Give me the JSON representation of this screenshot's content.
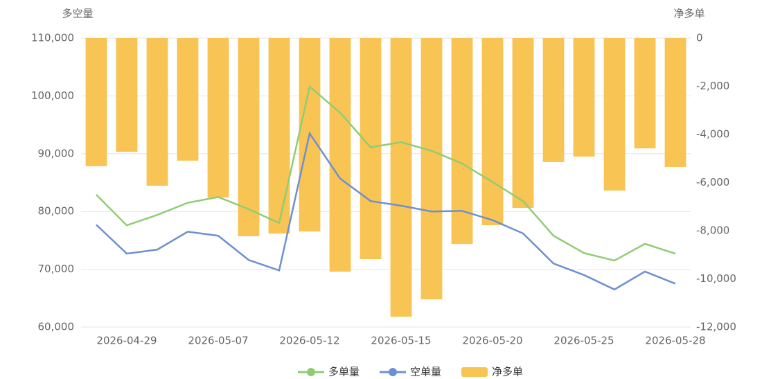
{
  "chart_data": {
    "type": "bar_line",
    "y_label": "多空量",
    "y2_label": "净多单",
    "categories": [
      null,
      "2026-04-29",
      null,
      null,
      "2026-05-07",
      null,
      null,
      "2026-05-12",
      null,
      null,
      "2026-05-15",
      null,
      null,
      "2026-05-20",
      null,
      null,
      "2026-05-25",
      null,
      null,
      "2026-05-28"
    ],
    "series": [
      {
        "name": "多单量",
        "color": "#91cc75",
        "kind": "line",
        "axis": "y",
        "values": [
          82900,
          77600,
          79400,
          81500,
          82500,
          80400,
          78000,
          101600,
          97100,
          91100,
          92000,
          90500,
          88300,
          85100,
          81800,
          75800,
          72800,
          71500,
          74400,
          72700
        ]
      },
      {
        "name": "空单量",
        "color": "#6f8fd0",
        "kind": "line",
        "axis": "y",
        "values": [
          77700,
          72700,
          73400,
          76500,
          75800,
          71600,
          69800,
          93500,
          85700,
          81800,
          81000,
          80000,
          80100,
          78500,
          76200,
          71000,
          69000,
          66500,
          69600,
          67500
        ]
      },
      {
        "name": "净多单",
        "color": "#f8c453",
        "kind": "bar",
        "axis": "y2",
        "values": [
          -5320,
          -4720,
          -6130,
          -5090,
          -6620,
          -8230,
          -8120,
          -8030,
          -9700,
          -9180,
          -11570,
          -10850,
          -8550,
          -7770,
          -7050,
          -5150,
          -4920,
          -6330,
          -4580,
          -5350
        ]
      }
    ],
    "ylim": [
      60000,
      110000
    ],
    "yticks": [
      {
        "value": 60000,
        "label": "60,000"
      },
      {
        "value": 70000,
        "label": "70,000"
      },
      {
        "value": 80000,
        "label": "80,000"
      },
      {
        "value": 90000,
        "label": "90,000"
      },
      {
        "value": 100000,
        "label": "100,000"
      },
      {
        "value": 110000,
        "label": "110,000"
      }
    ],
    "y2lim": [
      -12000,
      0
    ],
    "y2ticks": [
      {
        "value": -12000,
        "label": "-12,000"
      },
      {
        "value": -10000,
        "label": "-10,000"
      },
      {
        "value": -8000,
        "label": "-8,000"
      },
      {
        "value": -6000,
        "label": "-6,000"
      },
      {
        "value": -4000,
        "label": "-4,000"
      },
      {
        "value": -2000,
        "label": "-2,000"
      },
      0
    ],
    "grid": true,
    "legend": "bottom"
  }
}
